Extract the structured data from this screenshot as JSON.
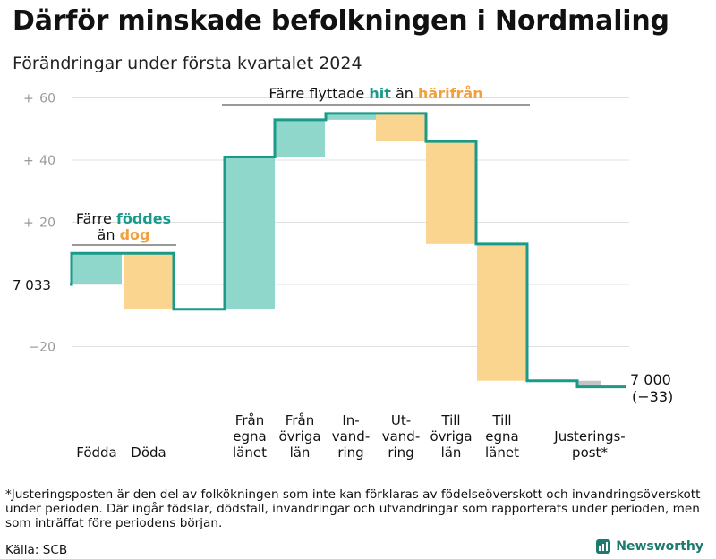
{
  "title": "Därför minskade befolkningen i Nordmaling",
  "subtitle": "Förändringar under första kvartalet 2024",
  "chart_data": {
    "type": "waterfall",
    "title": "Därför minskade befolkningen i Nordmaling",
    "subtitle": "Förändringar under första kvartalet 2024",
    "start_value": 7033,
    "start_label": "7 033",
    "end_value": 7000,
    "end_label": "7 000",
    "end_change_label": "(−33)",
    "ylim": [
      -35,
      60
    ],
    "y_ticks": [
      {
        "value": 60,
        "label": "60",
        "prefix": "+"
      },
      {
        "value": 40,
        "label": "40",
        "prefix": "+"
      },
      {
        "value": 20,
        "label": "20",
        "prefix": "+"
      },
      {
        "value": -20,
        "label": "−20",
        "prefix": ""
      }
    ],
    "steps": [
      {
        "category": [
          "Födda"
        ],
        "value": 10,
        "kind": "in"
      },
      {
        "category": [
          "Döda"
        ],
        "value": -18,
        "kind": "out"
      },
      {
        "category": [
          "Från",
          "egna",
          "länet"
        ],
        "value": 49,
        "kind": "in"
      },
      {
        "category": [
          "Från",
          "övriga",
          "län"
        ],
        "value": 12,
        "kind": "in"
      },
      {
        "category": [
          "In-",
          "vand-",
          "ring"
        ],
        "value": 2,
        "kind": "in"
      },
      {
        "category": [
          "Ut-",
          "vand-",
          "ring"
        ],
        "value": -9,
        "kind": "out"
      },
      {
        "category": [
          "Till",
          "övriga",
          "län"
        ],
        "value": -33,
        "kind": "out"
      },
      {
        "category": [
          "Till",
          "egna",
          "länet"
        ],
        "value": -44,
        "kind": "out"
      },
      {
        "category": [
          "Justerings-",
          "post*"
        ],
        "value": -2,
        "kind": "adjust"
      }
    ],
    "colors": {
      "in": "#8fd6cb",
      "out": "#fad58f",
      "adjust": "#c4c4c4",
      "line": "#1a9a8a",
      "grid": "#e0e0e0"
    }
  },
  "annotations": {
    "births_deaths": {
      "prefix": "Färre",
      "teal": "föddes",
      "line2_prefix": "än",
      "orange": "dog"
    },
    "migration": {
      "prefix": "Färre flyttade",
      "teal": "hit",
      "mid": "än",
      "orange": "härifrån"
    }
  },
  "footnote": "*Justeringsposten är den del av folkökningen som inte kan förklaras av födelseöverskott och invandringsöverskott under perioden. Där ingår födslar, dödsfall, invandringar och utvandringar som rapporterats under perioden, men som inträffat före periodens början.",
  "source": "Källa: SCB",
  "brand": {
    "name": "Newsworthy",
    "icon": "chart-bars-icon"
  }
}
